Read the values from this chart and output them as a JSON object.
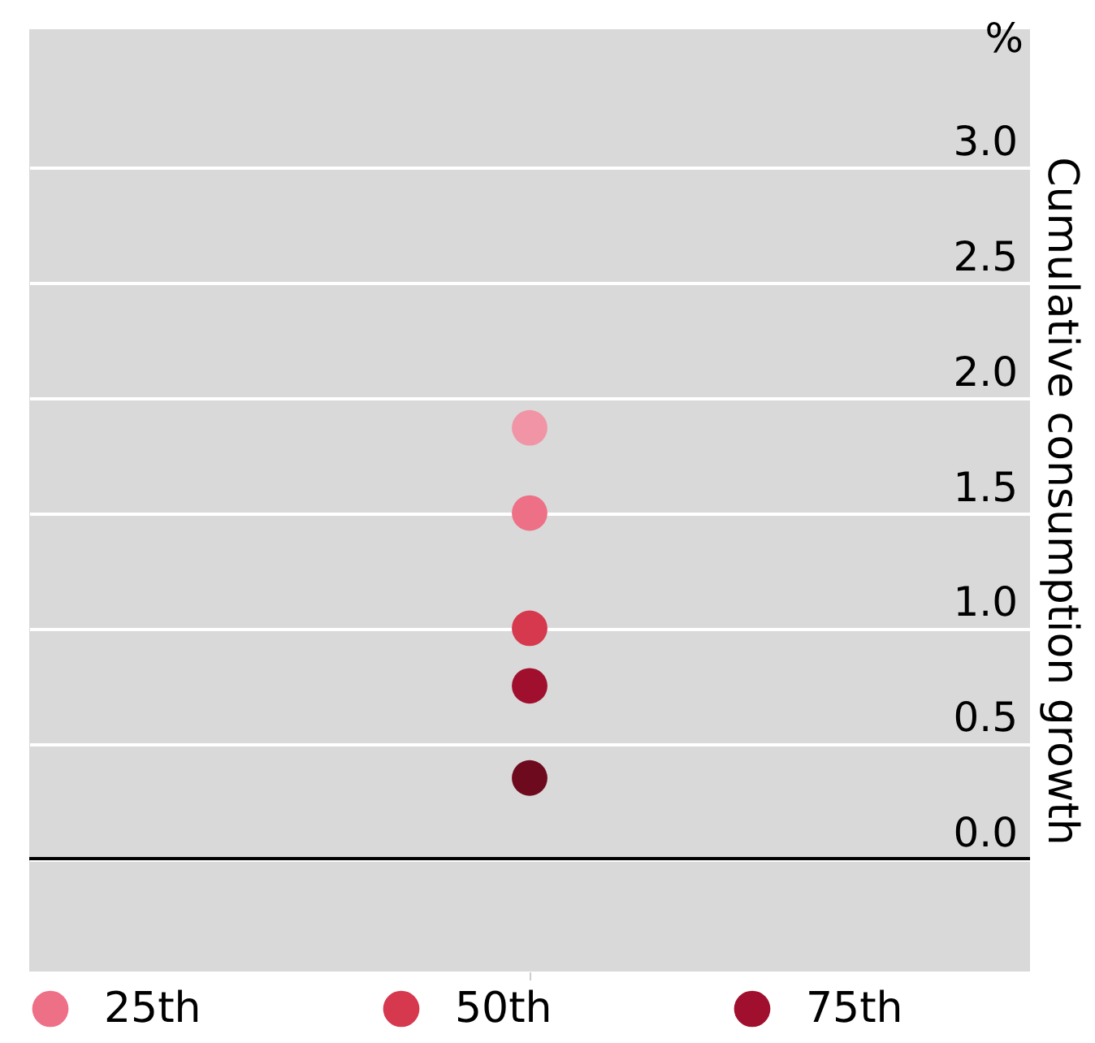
{
  "chart_data": {
    "type": "scatter",
    "ylabel": "Cumulative consumption growth",
    "annotations": [
      "%"
    ],
    "categories": [
      null
    ],
    "series": [
      {
        "color": "#f094a6",
        "values": [
          1.87
        ]
      },
      {
        "name": "25th",
        "color": "#ee7086",
        "values": [
          1.5
        ]
      },
      {
        "name": "50th",
        "color": "#d6384e",
        "values": [
          1.0
        ]
      },
      {
        "name": "75th",
        "color": "#a0102e",
        "values": [
          0.75
        ]
      },
      {
        "color": "#6e0a1e",
        "values": [
          0.35
        ]
      }
    ],
    "ylim": [
      -0.49,
      3.6
    ],
    "yticks": [
      {
        "value": 0,
        "label": "0.0"
      },
      0.5,
      {
        "value": 1,
        "label": "1.0"
      },
      1.5,
      {
        "value": 2,
        "label": "2.0"
      },
      2.5,
      {
        "value": 3,
        "label": "3.0"
      }
    ],
    "ref_lines": [
      {
        "axis": "y",
        "value": 0,
        "color": "#000000"
      }
    ],
    "grid": "y",
    "legend": "bottom",
    "marker": "circle"
  }
}
